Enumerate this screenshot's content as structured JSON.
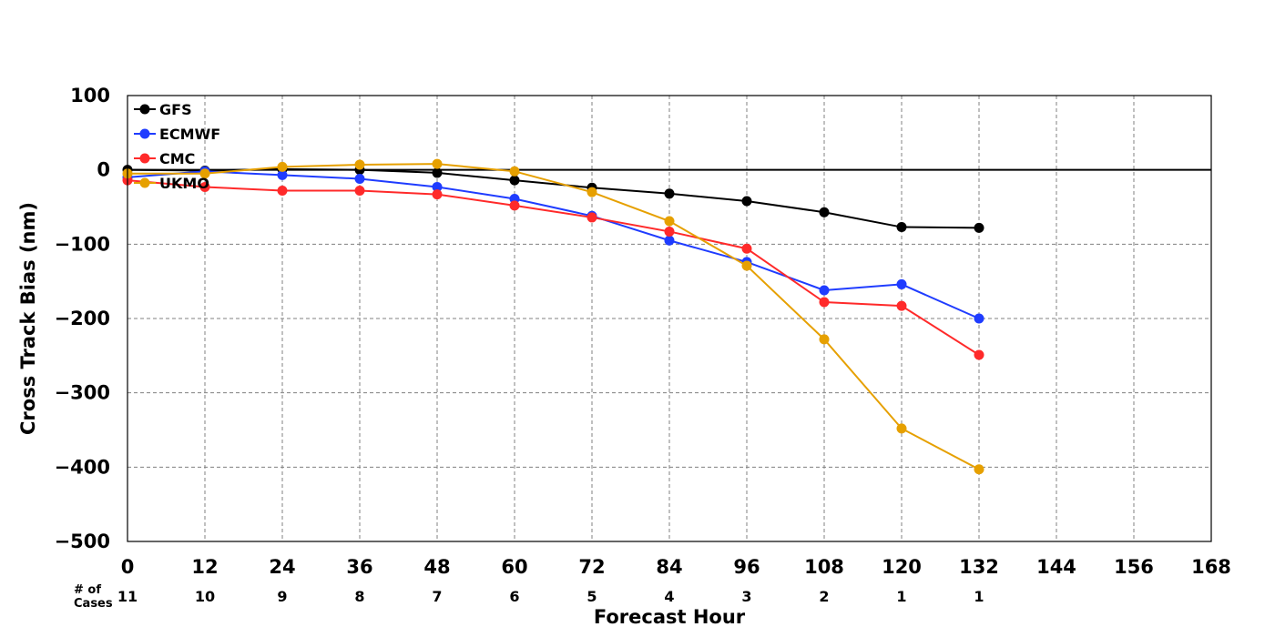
{
  "chart_data": {
    "type": "line",
    "xlabel": "Forecast Hour",
    "ylabel": "Cross Track Bias (nm)",
    "xlim": [
      0,
      168
    ],
    "ylim": [
      -500,
      100
    ],
    "x_ticks": [
      0,
      12,
      24,
      36,
      48,
      60,
      72,
      84,
      96,
      108,
      120,
      132,
      144,
      156,
      168
    ],
    "y_ticks": [
      100,
      0,
      -100,
      -200,
      -300,
      -400,
      -500
    ],
    "x_tick_labels": [
      "0",
      "12",
      "24",
      "36",
      "48",
      "60",
      "72",
      "84",
      "96",
      "108",
      "120",
      "132",
      "144",
      "156",
      "168"
    ],
    "y_tick_labels": [
      "100",
      "0",
      "−100",
      "−200",
      "−300",
      "−400",
      "−500"
    ],
    "grid": true,
    "legend_position": "top-left",
    "cases_label": "# of\nCases",
    "cases": [
      {
        "x": 0,
        "label": "11"
      },
      {
        "x": 12,
        "label": "10"
      },
      {
        "x": 24,
        "label": "9"
      },
      {
        "x": 36,
        "label": "8"
      },
      {
        "x": 48,
        "label": "7"
      },
      {
        "x": 60,
        "label": "6"
      },
      {
        "x": 72,
        "label": "5"
      },
      {
        "x": 84,
        "label": "4"
      },
      {
        "x": 96,
        "label": "3"
      },
      {
        "x": 108,
        "label": "2"
      },
      {
        "x": 120,
        "label": "1"
      },
      {
        "x": 132,
        "label": "1"
      }
    ],
    "x": [
      0,
      12,
      24,
      36,
      48,
      60,
      72,
      84,
      96,
      108,
      120,
      132
    ],
    "series": [
      {
        "name": "GFS",
        "color": "#000000",
        "values": [
          0,
          -1,
          1,
          0,
          -4,
          -14,
          -24,
          -32,
          -42,
          -57,
          -77,
          -78
        ]
      },
      {
        "name": "ECMWF",
        "color": "#1f3cff",
        "values": [
          -10,
          -2,
          -7,
          -12,
          -23,
          -39,
          -62,
          -95,
          -124,
          -162,
          -154,
          -200
        ]
      },
      {
        "name": "CMC",
        "color": "#ff2a2a",
        "values": [
          -14,
          -23,
          -28,
          -28,
          -33,
          -48,
          -64,
          -83,
          -106,
          -178,
          -183,
          -249
        ]
      },
      {
        "name": "UKMO",
        "color": "#e6a000",
        "values": [
          -5,
          -5,
          4,
          7,
          8,
          -2,
          -30,
          -69,
          -129,
          -228,
          -348,
          -403
        ]
      }
    ]
  }
}
